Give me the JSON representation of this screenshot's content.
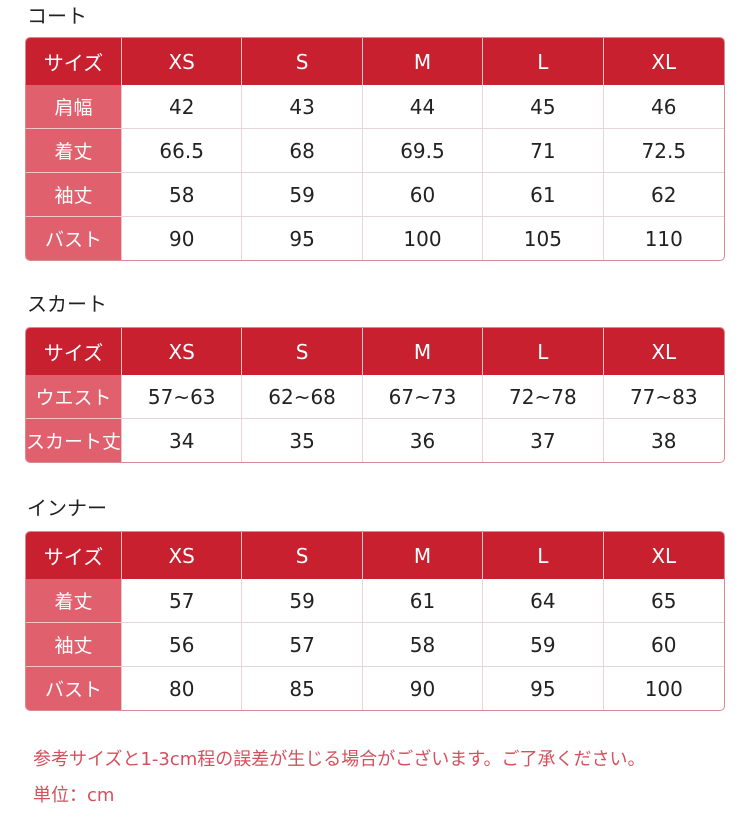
{
  "colors": {
    "header": "#c8202f",
    "label_column": "#e0606e",
    "note": "#d5505e"
  },
  "tables": [
    {
      "title": "コート",
      "headers": [
        "サイズ",
        "XS",
        "S",
        "M",
        "L",
        "XL"
      ],
      "rows": [
        {
          "label": "肩幅",
          "values": [
            "42",
            "43",
            "44",
            "45",
            "46"
          ]
        },
        {
          "label": "着丈",
          "values": [
            "66.5",
            "68",
            "69.5",
            "71",
            "72.5"
          ]
        },
        {
          "label": "袖丈",
          "values": [
            "58",
            "59",
            "60",
            "61",
            "62"
          ]
        },
        {
          "label": "バスト",
          "values": [
            "90",
            "95",
            "100",
            "105",
            "110"
          ]
        }
      ]
    },
    {
      "title": "スカート",
      "headers": [
        "サイズ",
        "XS",
        "S",
        "M",
        "L",
        "XL"
      ],
      "rows": [
        {
          "label": "ウエスト",
          "values": [
            "57~63",
            "62~68",
            "67~73",
            "72~78",
            "77~83"
          ]
        },
        {
          "label": "スカート丈",
          "values": [
            "34",
            "35",
            "36",
            "37",
            "38"
          ]
        }
      ]
    },
    {
      "title": "インナー",
      "headers": [
        "サイズ",
        "XS",
        "S",
        "M",
        "L",
        "XL"
      ],
      "rows": [
        {
          "label": "着丈",
          "values": [
            "57",
            "59",
            "61",
            "64",
            "65"
          ]
        },
        {
          "label": "袖丈",
          "values": [
            "56",
            "57",
            "58",
            "59",
            "60"
          ]
        },
        {
          "label": "バスト",
          "values": [
            "80",
            "85",
            "90",
            "95",
            "100"
          ]
        }
      ]
    }
  ],
  "note": "参考サイズと1-3cm程の誤差が生じる場合がございます。ご了承ください。",
  "unit": "単位：cm"
}
